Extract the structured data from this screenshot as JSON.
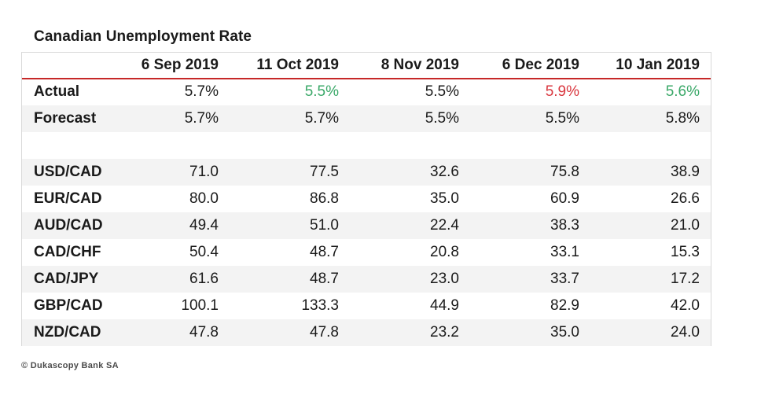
{
  "title": "Canadian Unemployment Rate",
  "chart_data": {
    "type": "table",
    "title": "Canadian Unemployment Rate",
    "columns": [
      "",
      "6 Sep 2019",
      "11 Oct 2019",
      "8 Nov 2019",
      "6 Dec 2019",
      "10 Jan 2019"
    ],
    "rows": [
      {
        "label": "Actual",
        "values": [
          "5.7%",
          "5.5%",
          "5.5%",
          "5.9%",
          "5.6%"
        ],
        "colors": [
          "",
          "#3aa868",
          "",
          "#d9363e",
          "#3aa868"
        ]
      },
      {
        "label": "Forecast",
        "values": [
          "5.7%",
          "5.7%",
          "5.5%",
          "5.5%",
          "5.8%"
        ]
      },
      {
        "label": "",
        "values": [
          "",
          "",
          "",
          "",
          ""
        ]
      },
      {
        "label": "USD/CAD",
        "values": [
          "71.0",
          "77.5",
          "32.6",
          "75.8",
          "38.9"
        ]
      },
      {
        "label": "EUR/CAD",
        "values": [
          "80.0",
          "86.8",
          "35.0",
          "60.9",
          "26.6"
        ]
      },
      {
        "label": "AUD/CAD",
        "values": [
          "49.4",
          "51.0",
          "22.4",
          "38.3",
          "21.0"
        ]
      },
      {
        "label": "CAD/CHF",
        "values": [
          "50.4",
          "48.7",
          "20.8",
          "33.1",
          "15.3"
        ]
      },
      {
        "label": "CAD/JPY",
        "values": [
          "61.6",
          "48.7",
          "23.0",
          "33.7",
          "17.2"
        ]
      },
      {
        "label": "GBP/CAD",
        "values": [
          "100.1",
          "133.3",
          "44.9",
          "82.9",
          "42.0"
        ]
      },
      {
        "label": "NZD/CAD",
        "values": [
          "47.8",
          "47.8",
          "23.2",
          "35.0",
          "24.0"
        ]
      }
    ],
    "accent_color": "#c62828"
  },
  "footer": "© Dukascopy Bank SA"
}
